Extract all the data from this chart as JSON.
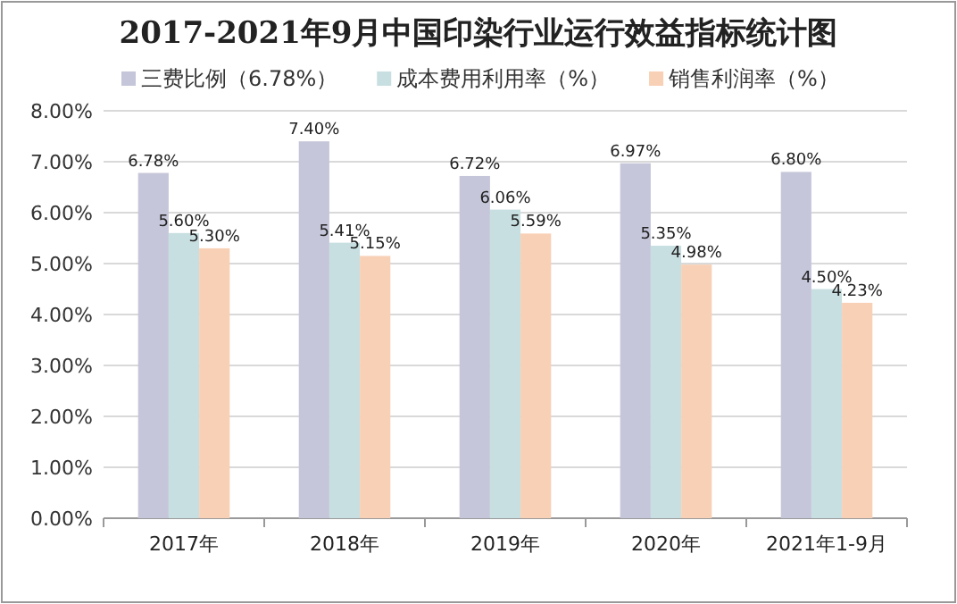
{
  "chart_data": {
    "type": "bar",
    "title": "2017-2021年9月中国印染行业运行效益指标统计图",
    "categories": [
      "2017年",
      "2018年",
      "2019年",
      "2020年",
      "2021年1-9月"
    ],
    "series": [
      {
        "name": "三费比例（6.78%）",
        "color": "#c5c6da",
        "values": [
          6.78,
          7.4,
          6.72,
          6.97,
          6.8
        ],
        "value_labels": [
          "6.78%",
          "7.40%",
          "6.72%",
          "6.97%",
          "6.80%"
        ]
      },
      {
        "name": "成本费用利用率（%）",
        "color": "#c8dfe1",
        "values": [
          5.6,
          5.41,
          6.06,
          5.35,
          4.5
        ],
        "value_labels": [
          "5.60%",
          "5.41%",
          "6.06%",
          "5.35%",
          "4.50%"
        ]
      },
      {
        "name": "销售利润率（%）",
        "color": "#f8d0b5",
        "values": [
          5.3,
          5.15,
          5.59,
          4.98,
          4.23
        ],
        "value_labels": [
          "5.30%",
          "5.15%",
          "5.59%",
          "4.98%",
          "4.23%"
        ]
      }
    ],
    "ylim": [
      0,
      8
    ],
    "yticks": [
      {
        "value": 0,
        "label": "0.00%"
      },
      {
        "value": 1,
        "label": "1.00%"
      },
      {
        "value": 2,
        "label": "2.00%"
      },
      {
        "value": 3,
        "label": "3.00%"
      },
      {
        "value": 4,
        "label": "4.00%"
      },
      {
        "value": 5,
        "label": "5.00%"
      },
      {
        "value": 6,
        "label": "6.00%"
      },
      {
        "value": 7,
        "label": "7.00%"
      },
      {
        "value": 8,
        "label": "8.00%"
      }
    ],
    "grid": "y",
    "legend": "top"
  }
}
